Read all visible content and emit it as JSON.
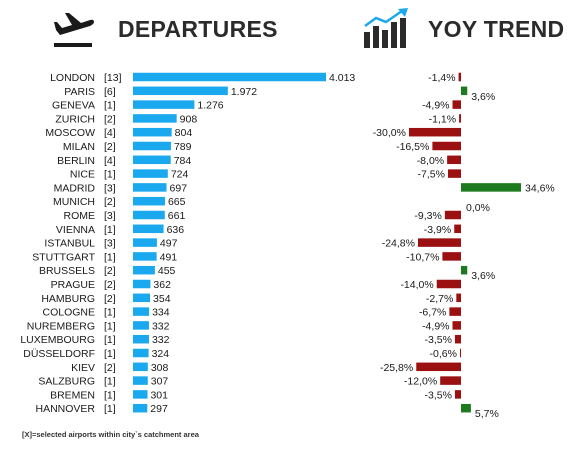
{
  "headers": {
    "departures_title": "DEPARTURES",
    "yoy_title": "YOY TREND"
  },
  "icons": {
    "plane": "airplane-departure-icon",
    "trend": "trend-bars-arrow-icon"
  },
  "footnote": "[X]=selected airports within city`s catchment area",
  "colors": {
    "departures_bar": "#1aa8ee",
    "yoy_negative": "#9b1111",
    "yoy_positive": "#1e7a1e"
  },
  "chart_data": [
    {
      "type": "bar",
      "orientation": "horizontal",
      "title": "DEPARTURES",
      "categories": [
        "LONDON",
        "PARIS",
        "GENEVA",
        "ZURICH",
        "MOSCOW",
        "MILAN",
        "BERLIN",
        "NICE",
        "MADRID",
        "MUNICH",
        "ROME",
        "VIENNA",
        "ISTANBUL",
        "STUTTGART",
        "BRUSSELS",
        "PRAGUE",
        "HAMBURG",
        "COLOGNE",
        "NUREMBERG",
        "LUXEMBOURG",
        "DÜSSELDORF",
        "KIEV",
        "SALZBURG",
        "BREMEN",
        "HANNOVER"
      ],
      "airport_counts": [
        "[13]",
        "[6]",
        "[1]",
        "[2]",
        "[4]",
        "[2]",
        "[4]",
        "[1]",
        "[3]",
        "[2]",
        "[3]",
        "[1]",
        "[3]",
        "[1]",
        "[2]",
        "[2]",
        "[2]",
        "[1]",
        "[1]",
        "[1]",
        "[1]",
        "[2]",
        "[1]",
        "[1]",
        "[1]"
      ],
      "values": [
        4013,
        1972,
        1276,
        908,
        804,
        789,
        784,
        724,
        697,
        665,
        661,
        636,
        497,
        491,
        455,
        362,
        354,
        334,
        332,
        332,
        324,
        308,
        307,
        301,
        297
      ],
      "value_labels": [
        "4.013",
        "1.972",
        "1.276",
        "908",
        "804",
        "789",
        "784",
        "724",
        "697",
        "665",
        "661",
        "636",
        "497",
        "491",
        "455",
        "362",
        "354",
        "334",
        "332",
        "332",
        "324",
        "308",
        "307",
        "301",
        "297"
      ]
    },
    {
      "type": "bar",
      "orientation": "horizontal",
      "title": "YOY TREND",
      "categories": [
        "LONDON",
        "PARIS",
        "GENEVA",
        "ZURICH",
        "MOSCOW",
        "MILAN",
        "BERLIN",
        "NICE",
        "MADRID",
        "MUNICH",
        "ROME",
        "VIENNA",
        "ISTANBUL",
        "STUTTGART",
        "BRUSSELS",
        "PRAGUE",
        "HAMBURG",
        "COLOGNE",
        "NUREMBERG",
        "LUXEMBOURG",
        "DÜSSELDORF",
        "KIEV",
        "SALZBURG",
        "BREMEN",
        "HANNOVER"
      ],
      "values": [
        -1.4,
        3.6,
        -4.9,
        -1.1,
        -30.0,
        -16.5,
        -8.0,
        -7.5,
        34.6,
        0.0,
        -9.3,
        -3.9,
        -24.8,
        -10.7,
        3.6,
        -14.0,
        -2.7,
        -6.7,
        -4.9,
        -3.5,
        -0.6,
        -25.8,
        -12.0,
        -3.5,
        5.7
      ],
      "value_labels": [
        "-1,4%",
        "3,6%",
        "-4,9%",
        "-1,1%",
        "-30,0%",
        "-16,5%",
        "-8,0%",
        "-7,5%",
        "34,6%",
        "0,0%",
        "-9,3%",
        "-3,9%",
        "-24,8%",
        "-10,7%",
        "3,6%",
        "-14,0%",
        "-2,7%",
        "-6,7%",
        "-4,9%",
        "-3,5%",
        "-0,6%",
        "-25,8%",
        "-12,0%",
        "-3,5%",
        "5,7%"
      ]
    }
  ]
}
